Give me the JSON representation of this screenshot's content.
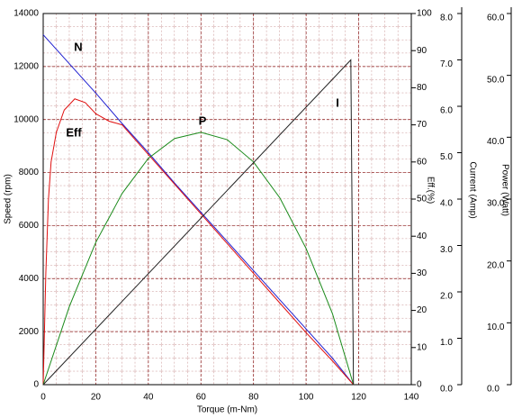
{
  "chart_data": {
    "type": "line",
    "xlabel": "Torque (m-Nm)",
    "ylabel": "Speed (rpm)",
    "y2label": "Eff.(%)",
    "y3label": "Current (Amp)",
    "y4label": "Power (Watt)",
    "xlim": [
      0,
      140
    ],
    "xticks": [
      0,
      20,
      40,
      60,
      80,
      100,
      120,
      140
    ],
    "ylim": [
      0,
      14000
    ],
    "yticks": [
      0,
      2000,
      4000,
      6000,
      8000,
      10000,
      12000,
      14000
    ],
    "y2lim": [
      0,
      100
    ],
    "y2ticks": [
      0,
      10,
      20,
      30,
      40,
      50,
      60,
      70,
      80,
      90,
      100
    ],
    "y3lim": [
      0,
      8
    ],
    "y3ticks": [
      {
        "value": 0,
        "label": "0.0"
      },
      {
        "value": 1,
        "label": "1.0"
      },
      {
        "value": 2,
        "label": "2.0"
      },
      {
        "value": 3,
        "label": "3.0"
      },
      {
        "value": 4,
        "label": "4.0"
      },
      {
        "value": 5,
        "label": "5.0"
      },
      {
        "value": 6,
        "label": "6.0"
      },
      {
        "value": 7,
        "label": "7.0"
      },
      {
        "value": 8,
        "label": "8.0"
      }
    ],
    "y4lim": [
      0,
      60
    ],
    "y4ticks": [
      {
        "value": 0,
        "label": "0.0"
      },
      {
        "value": 10,
        "label": "10.0"
      },
      {
        "value": 20,
        "label": "20.0"
      },
      {
        "value": 30,
        "label": "30.0"
      },
      {
        "value": 40,
        "label": "40.0"
      },
      {
        "value": 50,
        "label": "50.0"
      },
      {
        "value": 60,
        "label": "60.0"
      }
    ],
    "grid": true,
    "series": [
      {
        "name": "N",
        "color": "#1f1fd0",
        "axis": "y",
        "x": [
          0,
          10,
          20,
          30,
          40,
          50,
          60,
          70,
          80,
          90,
          100,
          110,
          118
        ],
        "values": [
          13200,
          12100,
          11000,
          9850,
          8750,
          7600,
          6500,
          5400,
          4300,
          3200,
          2100,
          1000,
          0
        ]
      },
      {
        "name": "Eff",
        "color": "#e01010",
        "axis": "y2",
        "x": [
          0,
          1,
          2,
          3,
          5,
          8,
          12,
          16,
          20,
          25,
          30,
          40,
          50,
          60,
          70,
          80,
          90,
          100,
          110,
          118
        ],
        "values": [
          0,
          30,
          50,
          60,
          68,
          74,
          77,
          76,
          73,
          71,
          70,
          62,
          54,
          46,
          38,
          30,
          22,
          14,
          6.4,
          0
        ]
      },
      {
        "name": "P",
        "color": "#1a8a1a",
        "axis": "y4",
        "x": [
          0,
          10,
          20,
          30,
          40,
          50,
          60,
          70,
          80,
          90,
          100,
          110,
          118
        ],
        "values": [
          0,
          12.7,
          23.0,
          30.9,
          36.6,
          39.8,
          40.8,
          39.6,
          36.0,
          30.2,
          22.0,
          11.5,
          0
        ]
      },
      {
        "name": "I",
        "color": "#222222",
        "axis": "y3",
        "x": [
          0,
          117,
          118
        ],
        "values": [
          0,
          7.0,
          0
        ]
      }
    ]
  }
}
